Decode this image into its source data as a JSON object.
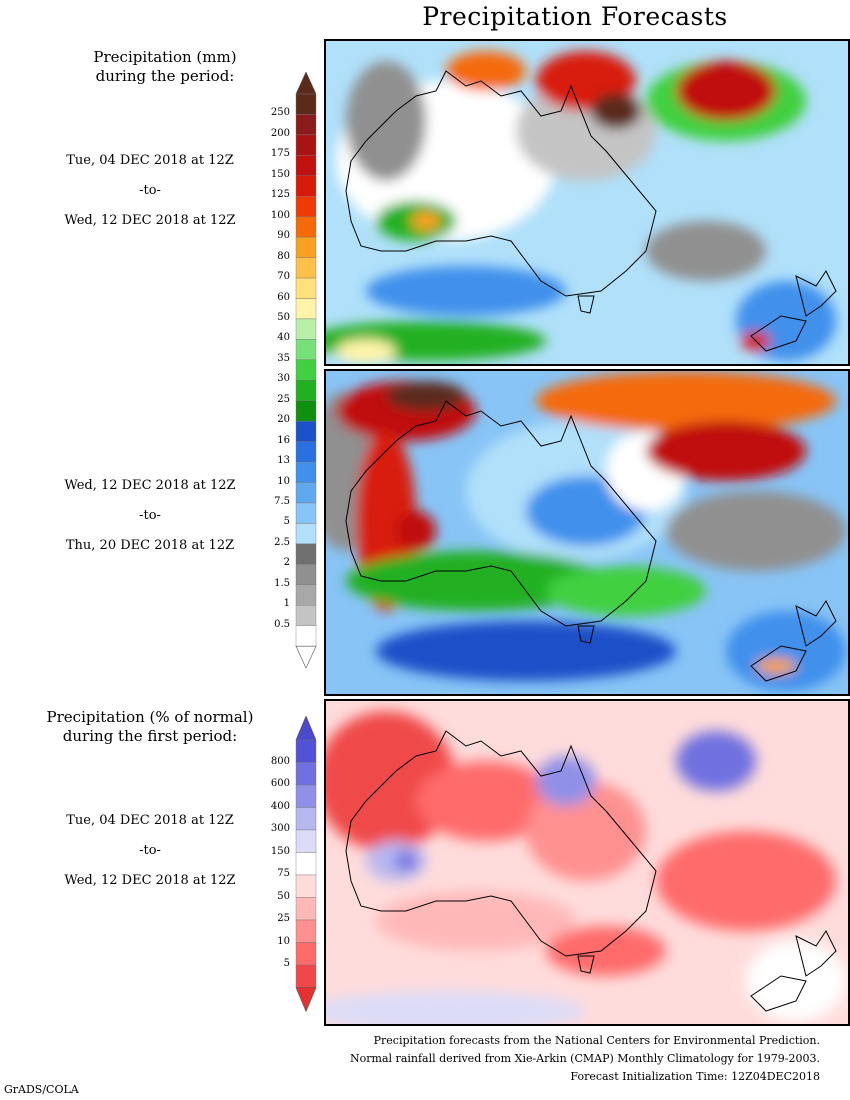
{
  "title": "Precipitation Forecasts",
  "section_mm": {
    "title_lines": [
      "Precipitation (mm)",
      "during the period:"
    ],
    "period1": {
      "start": "Tue, 04 DEC 2018 at 12Z",
      "sep": "-to-",
      "end": "Wed, 12 DEC 2018 at 12Z"
    },
    "period2": {
      "start": "Wed, 12 DEC 2018 at 12Z",
      "sep": "-to-",
      "end": "Thu, 20 DEC 2018 at 12Z"
    },
    "colorbar": {
      "labels": [
        "250",
        "200",
        "175",
        "150",
        "125",
        "100",
        "90",
        "80",
        "70",
        "60",
        "50",
        "40",
        "35",
        "30",
        "25",
        "20",
        "16",
        "13",
        "10",
        "7.5",
        "5",
        "2.5",
        "2",
        "1.5",
        "1",
        "0.5"
      ],
      "colors": [
        "#5b2a1a",
        "#8b1a1a",
        "#a81414",
        "#c01010",
        "#d81a0a",
        "#ef3a06",
        "#f46a08",
        "#f8a020",
        "#fdc048",
        "#ffe07a",
        "#fff4a8",
        "#b8f0a8",
        "#78e078",
        "#40d040",
        "#20b020",
        "#109010",
        "#1a50c8",
        "#2a70e0",
        "#4090ec",
        "#60a8f0",
        "#88c4f6",
        "#b0e0fa",
        "#707070",
        "#909090",
        "#a8a8a8",
        "#c4c4c4",
        "#ffffff"
      ],
      "top_arrow_color": "#5b2a1a",
      "bottom_arrow_color": "#ffffff"
    }
  },
  "section_pct": {
    "title_lines": [
      "Precipitation (% of normal)",
      "during the first period:"
    ],
    "period": {
      "start": "Tue, 04 DEC 2018 at 12Z",
      "sep": "-to-",
      "end": "Wed, 12 DEC 2018 at 12Z"
    },
    "colorbar": {
      "labels": [
        "800",
        "600",
        "400",
        "300",
        "150",
        "75",
        "50",
        "25",
        "10",
        "5"
      ],
      "colors": [
        "#5252d8",
        "#7070e0",
        "#9090e8",
        "#b8b8f0",
        "#dcdcf8",
        "#ffffff",
        "#ffdcdc",
        "#ffb8b8",
        "#ff9090",
        "#ff6a6a",
        "#f04848"
      ],
      "top_arrow_color": "#4a4ad0",
      "bottom_arrow_color": "#e83030"
    }
  },
  "footer": {
    "line1": "Precipitation forecasts from the National Centers for Environmental Prediction.",
    "line2": "Normal rainfall derived from Xie-Arkin (CMAP) Monthly Climatology for 1979-2003.",
    "line3": "Forecast Initialization Time: 12Z04DEC2018"
  },
  "credit": "GrADS/COLA"
}
